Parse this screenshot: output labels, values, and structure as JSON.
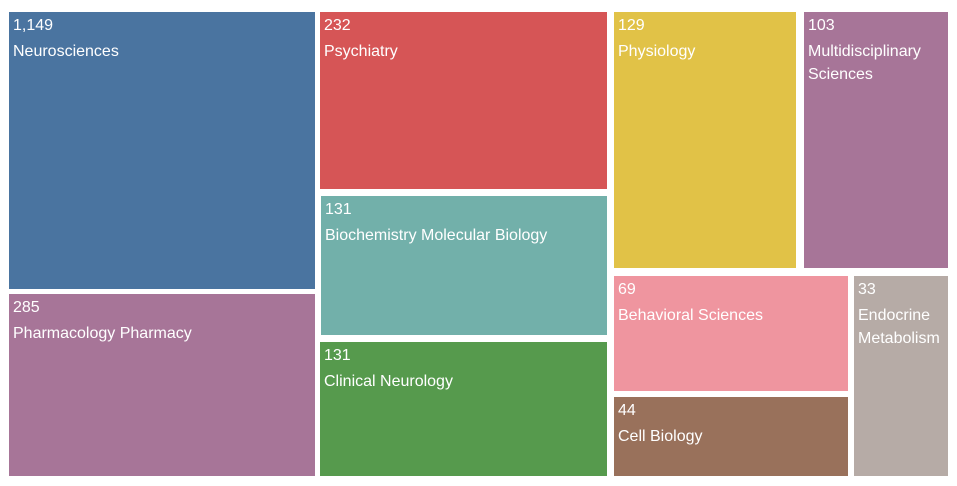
{
  "chart_data": {
    "type": "treemap",
    "items": [
      {
        "value_label": "1,149",
        "value": 1149,
        "label": "Neurosciences",
        "color": "#4a74a0"
      },
      {
        "value_label": "285",
        "value": 285,
        "label": "Pharmacology Pharmacy",
        "color": "#a77598"
      },
      {
        "value_label": "232",
        "value": 232,
        "label": "Psychiatry",
        "color": "#d65556"
      },
      {
        "value_label": "131",
        "value": 131,
        "label": "Biochemistry Molecular Biology",
        "color": "#72b0aa"
      },
      {
        "value_label": "131",
        "value": 131,
        "label": "Clinical Neurology",
        "color": "#569a4d"
      },
      {
        "value_label": "129",
        "value": 129,
        "label": "Physiology",
        "color": "#e1c247"
      },
      {
        "value_label": "103",
        "value": 103,
        "label": "Multidisciplinary\nSciences",
        "color": "#a77598"
      },
      {
        "value_label": "69",
        "value": 69,
        "label": "Behavioral Sciences",
        "color": "#ef959f"
      },
      {
        "value_label": "44",
        "value": 44,
        "label": "Cell Biology",
        "color": "#99715b"
      },
      {
        "value_label": "33",
        "value": 33,
        "label": "Endocrine\nMetabolism",
        "color": "#b6aba6"
      }
    ]
  }
}
